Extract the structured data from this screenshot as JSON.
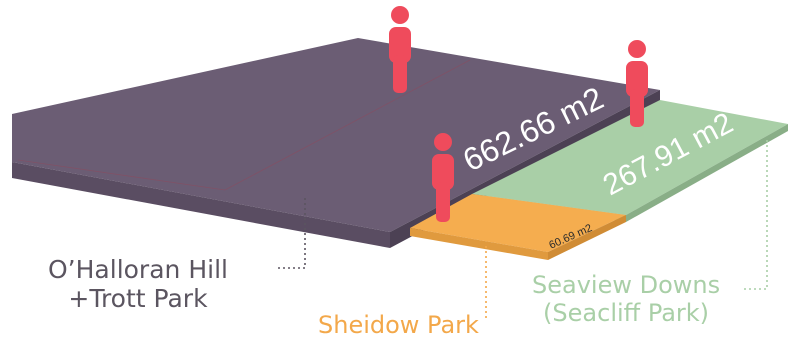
{
  "regions": [
    {
      "id": "ohalloran",
      "name_line1": "O’Halloran Hill",
      "name_line2": "+Trott Park",
      "area": "662.66 m2",
      "color": "#6b5d74"
    },
    {
      "id": "sheidow",
      "name": "Sheidow Park",
      "area": "60.69 m2",
      "color": "#f5ad4f"
    },
    {
      "id": "seaview",
      "name_line1": "Seaview Downs",
      "name_line2": "(Seacliff Park)",
      "area": "267.91 m2",
      "color": "#a9cfa7"
    }
  ],
  "person_icon_color": "#ef4b5c",
  "person_icons": [
    "person-icon",
    "person-icon",
    "person-icon"
  ]
}
